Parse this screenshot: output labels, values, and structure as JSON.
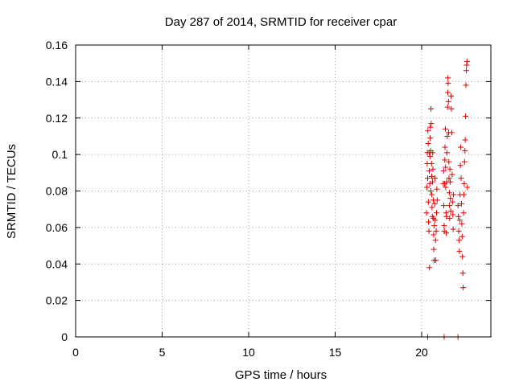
{
  "chart_data": {
    "type": "scatter",
    "title": "Day 287 of 2014, SRMTID for receiver cpar",
    "xlabel": "GPS time / hours",
    "ylabel": "SRMTID / TECUs",
    "xlim": [
      0,
      24
    ],
    "ylim": [
      0,
      0.16
    ],
    "xticks": [
      0,
      5,
      10,
      15,
      20
    ],
    "xtick_labels": [
      "0",
      "5",
      "10",
      "15",
      "20"
    ],
    "yticks": [
      0,
      0.02,
      0.04,
      0.06,
      0.08,
      0.1,
      0.12,
      0.14,
      0.16
    ],
    "ytick_labels": [
      "0",
      "0.02",
      "0.04",
      "0.06",
      "0.08",
      "0.1",
      "0.12",
      "0.14",
      "0.16"
    ],
    "grid": true,
    "marker": "plus",
    "color": "#dd0000",
    "series": [
      {
        "points": [
          [
            20.28,
            0.068
          ],
          [
            20.3,
            0.082
          ],
          [
            20.32,
            0.095
          ],
          [
            20.33,
            0.101
          ],
          [
            20.35,
            0.087
          ],
          [
            20.36,
            0.113
          ],
          [
            20.38,
            0.106
          ],
          [
            20.39,
            0.074
          ],
          [
            20.4,
            0.063
          ],
          [
            20.42,
            0.058
          ],
          [
            20.43,
            0.101
          ],
          [
            20.44,
            0.091
          ],
          [
            20.45,
            0.038
          ],
          [
            20.47,
            0.084
          ],
          [
            20.48,
            0.099
          ],
          [
            20.49,
            0.109
          ],
          [
            20.5,
            0.115
          ],
          [
            20.52,
            0.102
          ],
          [
            20.53,
            0.08
          ],
          [
            20.54,
            0.125
          ],
          [
            20.55,
            0.117
          ],
          [
            20.57,
            0.095
          ],
          [
            20.58,
            0.088
          ],
          [
            20.59,
            0.078
          ],
          [
            20.6,
            0.071
          ],
          [
            20.62,
            0.066
          ],
          [
            20.63,
            0.085
          ],
          [
            20.64,
            0.101
          ],
          [
            20.65,
            0.092
          ],
          [
            20.67,
            0.075
          ],
          [
            20.68,
            0.065
          ],
          [
            20.69,
            0.056
          ],
          [
            20.7,
            0.048
          ],
          [
            20.72,
            0.042
          ],
          [
            20.73,
            0.061
          ],
          [
            20.75,
            0.073
          ],
          [
            20.76,
            0.087
          ],
          [
            20.78,
            0.064
          ],
          [
            20.8,
            0.053
          ],
          [
            20.82,
            0.042
          ],
          [
            20.84,
            0.058
          ],
          [
            20.86,
            0.068
          ],
          [
            20.88,
            0.081
          ],
          [
            20.9,
            0.075
          ],
          [
            21.25,
            0.084
          ],
          [
            21.27,
            0.091
          ],
          [
            21.28,
            0.072
          ],
          [
            21.3,
            0.061
          ],
          [
            21.31,
            0.058
          ],
          [
            21.33,
            0.084
          ],
          [
            21.34,
            0.097
          ],
          [
            21.35,
            0.104
          ],
          [
            21.37,
            0.114
          ],
          [
            21.38,
            0.093
          ],
          [
            21.39,
            0.082
          ],
          [
            21.41,
            0.068
          ],
          [
            21.42,
            0.057
          ],
          [
            21.43,
            0.066
          ],
          [
            21.45,
            0.085
          ],
          [
            21.46,
            0.101
          ],
          [
            21.48,
            0.11
          ],
          [
            21.5,
            0.126
          ],
          [
            21.51,
            0.134
          ],
          [
            21.52,
            0.142
          ],
          [
            21.53,
            0.139
          ],
          [
            21.55,
            0.129
          ],
          [
            21.56,
            0.112
          ],
          [
            21.57,
            0.096
          ],
          [
            21.58,
            0.087
          ],
          [
            21.6,
            0.079
          ],
          [
            21.61,
            0.072
          ],
          [
            21.62,
            0.065
          ],
          [
            21.63,
            0.092
          ],
          [
            21.65,
            0.085
          ],
          [
            21.66,
            0.076
          ],
          [
            21.68,
            0.069
          ],
          [
            21.7,
            0.132
          ],
          [
            21.72,
            0.125
          ],
          [
            21.74,
            0.112
          ],
          [
            21.76,
            0.089
          ],
          [
            21.78,
            0.074
          ],
          [
            21.8,
            0.067
          ],
          [
            21.82,
            0.059
          ],
          [
            21.84,
            0.078
          ],
          [
            22.1,
            0.072
          ],
          [
            22.12,
            0.066
          ],
          [
            22.14,
            0.058
          ],
          [
            22.16,
            0.053
          ],
          [
            22.18,
            0.047
          ],
          [
            22.2,
            0.064
          ],
          [
            22.22,
            0.078
          ],
          [
            22.24,
            0.094
          ],
          [
            22.26,
            0.104
          ],
          [
            22.28,
            0.087
          ],
          [
            22.3,
            0.073
          ],
          [
            22.32,
            0.062
          ],
          [
            22.34,
            0.055
          ],
          [
            22.36,
            0.044
          ],
          [
            22.38,
            0.035
          ],
          [
            22.4,
            0.027
          ],
          [
            22.42,
            0.068
          ],
          [
            22.44,
            0.078
          ],
          [
            22.46,
            0.084
          ],
          [
            22.48,
            0.096
          ],
          [
            22.5,
            0.102
          ],
          [
            22.52,
            0.108
          ],
          [
            22.54,
            0.121
          ],
          [
            22.56,
            0.138
          ],
          [
            22.58,
            0.146
          ],
          [
            22.6,
            0.149
          ],
          [
            22.62,
            0.151
          ],
          [
            22.64,
            0.082
          ]
        ]
      },
      {
        "points": [
          [
            20.35,
            0.0
          ],
          [
            21.3,
            0.0
          ],
          [
            22.1,
            0.0
          ]
        ]
      }
    ]
  }
}
